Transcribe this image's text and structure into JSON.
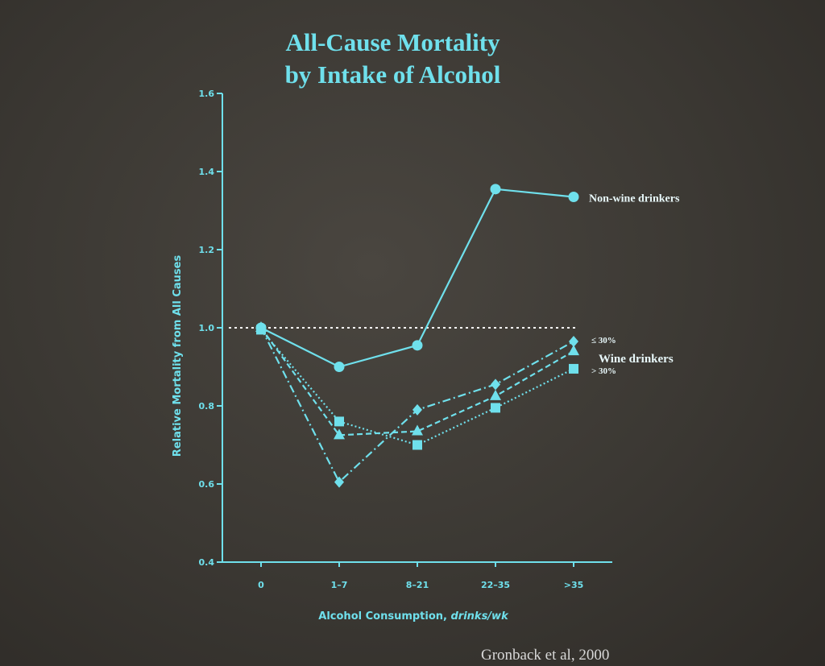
{
  "slide": {
    "title_line1": "All-Cause Mortality",
    "title_line2": "by Intake of Alcohol",
    "citation": "Gronback et al, 2000"
  },
  "colors": {
    "accent": "#6fe0ec",
    "background": "#3b3833",
    "legend_text": "#e8f8fa"
  },
  "chart_data": {
    "type": "line",
    "xlabel": "Alcohol Consumption, drinks/wk",
    "xlabel_plain": "Alcohol Consumption, ",
    "xlabel_italic": "drinks/wk",
    "ylabel": "Relative Mortality from All Causes",
    "categories": [
      "0",
      "1–7",
      "8–21",
      "22–35",
      ">35"
    ],
    "ylim": [
      0.4,
      1.6
    ],
    "yticks": [
      "0.4",
      "0.6",
      "0.8",
      "1.0",
      "1.2",
      "1.4",
      "1.6"
    ],
    "reference_line": 1.0,
    "grid": false,
    "series": [
      {
        "name": "Non-wine drinkers",
        "marker": "circle",
        "dash": "solid",
        "values": [
          1.0,
          0.9,
          0.955,
          1.355,
          1.335
        ]
      },
      {
        "name": "≤ 30%",
        "marker": "diamond",
        "dash": "dashdot",
        "values": [
          1.0,
          0.605,
          0.79,
          0.855,
          0.965
        ]
      },
      {
        "name": "Wine drinkers",
        "marker": "triangle",
        "dash": "dashed",
        "values": [
          1.0,
          0.725,
          0.735,
          0.825,
          0.94
        ]
      },
      {
        "name": "> 30%",
        "marker": "square",
        "dash": "dotted",
        "values": [
          0.995,
          0.76,
          0.7,
          0.795,
          0.895
        ]
      }
    ]
  }
}
